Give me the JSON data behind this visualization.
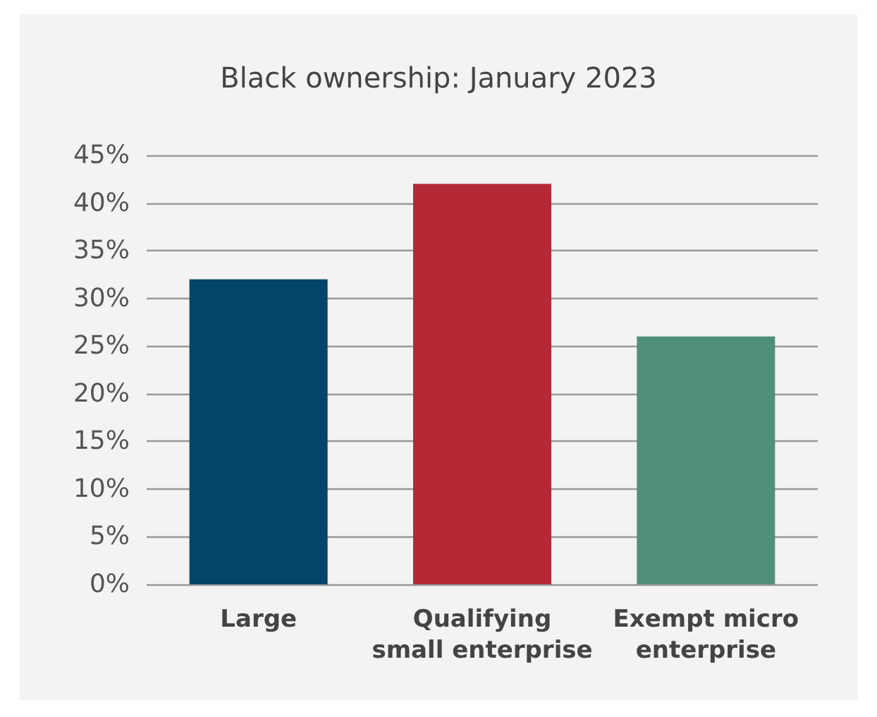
{
  "chart_data": {
    "type": "bar",
    "title": "Black ownership: January 2023",
    "categories": [
      "Large",
      "Qualifying\nsmall enterprise",
      "Exempt micro\nenterprise"
    ],
    "values": [
      32,
      42,
      26
    ],
    "colors": [
      "#02446a",
      "#b52937",
      "#4f8f78"
    ],
    "ylim": [
      0,
      45
    ],
    "yticks": [
      {
        "value": 0,
        "label": "0%"
      },
      {
        "value": 5,
        "label": "5%"
      },
      {
        "value": 10,
        "label": "10%"
      },
      {
        "value": 15,
        "label": "15%"
      },
      {
        "value": 20,
        "label": "20%"
      },
      {
        "value": 25,
        "label": "25%"
      },
      {
        "value": 30,
        "label": "30%"
      },
      {
        "value": 35,
        "label": "35%"
      },
      {
        "value": 40,
        "label": "40%"
      },
      {
        "value": 45,
        "label": "45%"
      }
    ],
    "grid": "y"
  }
}
